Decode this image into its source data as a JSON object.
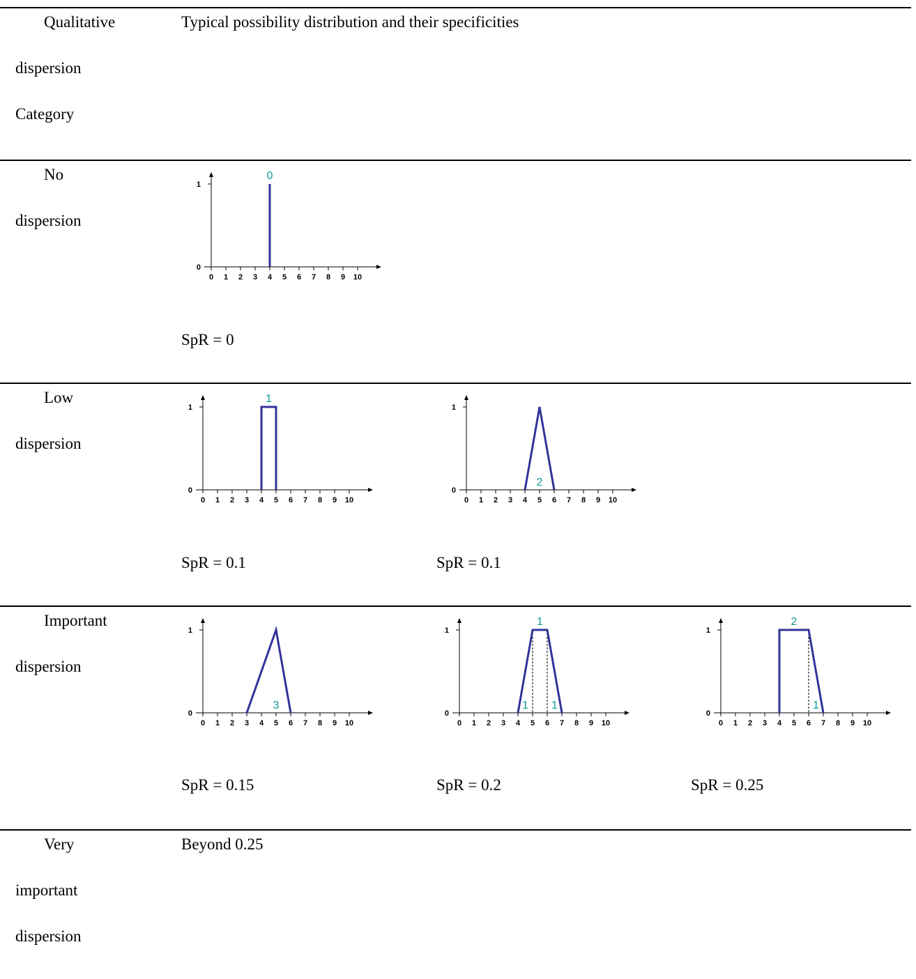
{
  "header": {
    "category_lines": [
      "Qualitative",
      "dispersion",
      "Category"
    ],
    "distribution_title": "Typical possibility distribution and their specificities"
  },
  "rows": [
    {
      "category_lines": [
        "No",
        "dispersion"
      ],
      "spr": [
        "SpR = 0"
      ]
    },
    {
      "category_lines": [
        "Low",
        "dispersion"
      ],
      "spr": [
        "SpR = 0.1",
        "SpR = 0.1"
      ]
    },
    {
      "category_lines": [
        "Important",
        "dispersion"
      ],
      "spr": [
        "SpR = 0.15",
        "SpR = 0.2",
        "SpR = 0.25"
      ]
    },
    {
      "category_lines": [
        "Very",
        "important",
        "dispersion"
      ],
      "note": "Beyond 0.25"
    }
  ],
  "colors": {
    "curve": "#33339a",
    "annotation": "#0e9b9b",
    "axis": "#000000"
  },
  "chart_data": [
    {
      "type": "line",
      "xlim": [
        0,
        10
      ],
      "ylim": [
        0,
        1
      ],
      "x_ticks": [
        "0",
        "1",
        "2",
        "3",
        "4",
        "5",
        "6",
        "7",
        "8",
        "9",
        "10"
      ],
      "y_ticks": [
        "0",
        "1"
      ],
      "series": [
        {
          "points": [
            [
              4,
              0
            ],
            [
              4,
              1
            ]
          ]
        }
      ],
      "dashed": [],
      "annotations": [
        {
          "text": "0",
          "x": 4,
          "y": 1,
          "pos": "above"
        }
      ]
    },
    {
      "type": "line",
      "xlim": [
        0,
        10
      ],
      "ylim": [
        0,
        1
      ],
      "x_ticks": [
        "0",
        "1",
        "2",
        "3",
        "4",
        "5",
        "6",
        "7",
        "8",
        "9",
        "10"
      ],
      "y_ticks": [
        "0",
        "1"
      ],
      "series": [
        {
          "points": [
            [
              4,
              0
            ],
            [
              4,
              1
            ],
            [
              5,
              1
            ],
            [
              5,
              0
            ]
          ]
        }
      ],
      "dashed": [],
      "annotations": [
        {
          "text": "1",
          "x": 4.5,
          "y": 1,
          "pos": "above"
        }
      ]
    },
    {
      "type": "line",
      "xlim": [
        0,
        10
      ],
      "ylim": [
        0,
        1
      ],
      "x_ticks": [
        "0",
        "1",
        "2",
        "3",
        "4",
        "5",
        "6",
        "7",
        "8",
        "9",
        "10"
      ],
      "y_ticks": [
        "0",
        "1"
      ],
      "series": [
        {
          "points": [
            [
              4,
              0
            ],
            [
              5,
              1
            ],
            [
              6,
              0
            ]
          ]
        }
      ],
      "dashed": [],
      "annotations": [
        {
          "text": "2",
          "x": 5,
          "y": 0,
          "pos": "inside"
        }
      ]
    },
    {
      "type": "line",
      "xlim": [
        0,
        10
      ],
      "ylim": [
        0,
        1
      ],
      "x_ticks": [
        "0",
        "1",
        "2",
        "3",
        "4",
        "5",
        "6",
        "7",
        "8",
        "9",
        "10"
      ],
      "y_ticks": [
        "0",
        "1"
      ],
      "series": [
        {
          "points": [
            [
              3,
              0
            ],
            [
              5,
              1
            ],
            [
              6,
              0
            ]
          ]
        }
      ],
      "dashed": [],
      "annotations": [
        {
          "text": "3",
          "x": 5,
          "y": 0,
          "pos": "inside"
        }
      ]
    },
    {
      "type": "line",
      "xlim": [
        0,
        10
      ],
      "ylim": [
        0,
        1
      ],
      "x_ticks": [
        "0",
        "1",
        "2",
        "3",
        "4",
        "5",
        "6",
        "7",
        "8",
        "9",
        "10"
      ],
      "y_ticks": [
        "0",
        "1"
      ],
      "series": [
        {
          "points": [
            [
              4,
              0
            ],
            [
              5,
              1
            ],
            [
              6,
              1
            ],
            [
              7,
              0
            ]
          ]
        }
      ],
      "dashed": [
        5,
        6
      ],
      "annotations": [
        {
          "text": "1",
          "x": 5.5,
          "y": 1,
          "pos": "above"
        },
        {
          "text": "1",
          "x": 4.5,
          "y": 0,
          "pos": "inside"
        },
        {
          "text": "1",
          "x": 6.5,
          "y": 0,
          "pos": "inside"
        }
      ]
    },
    {
      "type": "line",
      "xlim": [
        0,
        10
      ],
      "ylim": [
        0,
        1
      ],
      "x_ticks": [
        "0",
        "1",
        "2",
        "3",
        "4",
        "5",
        "6",
        "7",
        "8",
        "9",
        "10"
      ],
      "y_ticks": [
        "0",
        "1"
      ],
      "series": [
        {
          "points": [
            [
              4,
              0
            ],
            [
              4,
              1
            ],
            [
              6,
              1
            ],
            [
              7,
              0
            ]
          ]
        }
      ],
      "dashed": [
        6
      ],
      "annotations": [
        {
          "text": "2",
          "x": 5,
          "y": 1,
          "pos": "above"
        },
        {
          "text": "1",
          "x": 6.5,
          "y": 0,
          "pos": "inside"
        }
      ]
    }
  ]
}
